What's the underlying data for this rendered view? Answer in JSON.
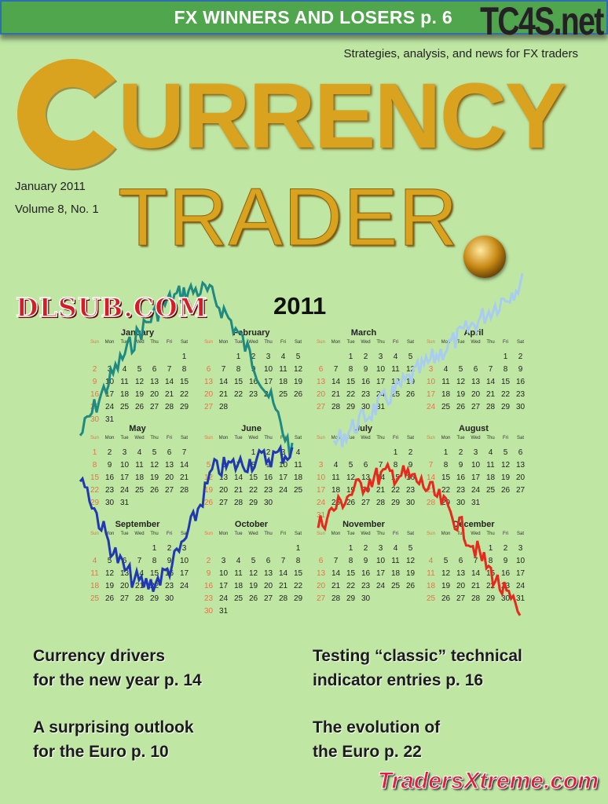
{
  "header": {
    "headline": "FX WINNERS AND LOSERS p. 6",
    "watermark_logo": "TC4S.net",
    "bar_color": "#4fa64c"
  },
  "masthead": {
    "tagline": "Strategies, analysis, and news for FX traders",
    "title_initial": "C",
    "title_rest": "URRENCY",
    "title_second": "TRADER",
    "title_color": "#d9a21f"
  },
  "issue": {
    "date": "January 2011",
    "volume": "Volume 8, No. 1"
  },
  "calendar": {
    "year": "2011",
    "weekdays": [
      "Sun",
      "Mon",
      "Tue",
      "Wed",
      "Thu",
      "Fri",
      "Sat"
    ],
    "months": [
      {
        "name": "January",
        "first_weekday": 6,
        "days": 31
      },
      {
        "name": "February",
        "first_weekday": 2,
        "days": 28
      },
      {
        "name": "March",
        "first_weekday": 2,
        "days": 31
      },
      {
        "name": "April",
        "first_weekday": 5,
        "days": 30
      },
      {
        "name": "May",
        "first_weekday": 0,
        "days": 31
      },
      {
        "name": "June",
        "first_weekday": 3,
        "days": 30
      },
      {
        "name": "July",
        "first_weekday": 5,
        "days": 31
      },
      {
        "name": "August",
        "first_weekday": 1,
        "days": 31
      },
      {
        "name": "September",
        "first_weekday": 4,
        "days": 30
      },
      {
        "name": "October",
        "first_weekday": 6,
        "days": 31
      },
      {
        "name": "November",
        "first_weekday": 2,
        "days": 30
      },
      {
        "name": "December",
        "first_weekday": 4,
        "days": 31
      }
    ],
    "line_colors": [
      "#1f8a80",
      "#a9cdf0",
      "#2038b0",
      "#e8281c"
    ]
  },
  "watermark": "DLSUB.COM",
  "stories": [
    {
      "line1": "Currency drivers",
      "line2": "for the new year p. 14"
    },
    {
      "line1": "Testing “classic” technical",
      "line2": "indicator entries p. 16"
    },
    {
      "line1": "A surprising outlook",
      "line2": "for the Euro p. 10"
    },
    {
      "line1": "The evolution of",
      "line2": "the Euro p. 22"
    }
  ],
  "footer_logo": "TradersXtreme.com"
}
